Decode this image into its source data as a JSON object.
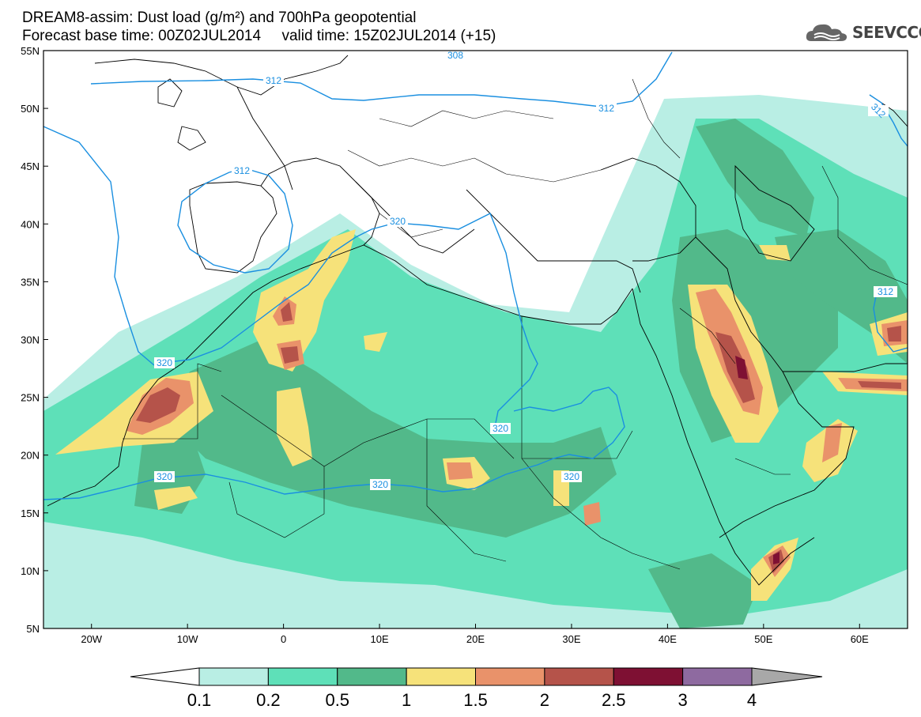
{
  "header": {
    "line1": "DREAM8-assim: Dust load (g/m²) and 700hPa geopotential",
    "line2": "Forecast base time: 00Z02JUL2014     valid time: 15Z02JUL2014 (+15)"
  },
  "logo": {
    "text": "SEEVCCC",
    "icon": "cloud-logo-icon"
  },
  "map": {
    "lon_range": [
      -25,
      65
    ],
    "lat_range": [
      5,
      55
    ],
    "lat_ticks": [
      "55N",
      "50N",
      "45N",
      "40N",
      "35N",
      "30N",
      "25N",
      "20N",
      "15N",
      "10N",
      "5N"
    ],
    "lon_ticks": [
      "20W",
      "10W",
      "0",
      "10E",
      "20E",
      "30E",
      "40E",
      "50E",
      "60E"
    ],
    "contour_color": "#1a8fe0",
    "contour_labels": [
      "312",
      "312",
      "312",
      "312",
      "312",
      "320",
      "320",
      "320",
      "320",
      "320",
      "308"
    ]
  },
  "colorbar": {
    "levels": [
      "0.1",
      "0.2",
      "0.5",
      "1",
      "1.5",
      "2",
      "2.5",
      "3",
      "4"
    ],
    "colors": [
      "#b9eee4",
      "#5ee0b8",
      "#52b98a",
      "#f6e27a",
      "#e9926a",
      "#b5534a",
      "#7e1033",
      "#8e6aa0",
      "#a8a8a8"
    ]
  }
}
